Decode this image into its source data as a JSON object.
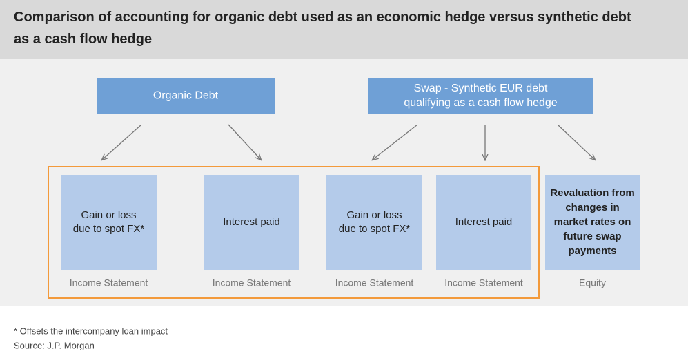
{
  "header": {
    "title": [
      "Comparison of accounting for organic debt used as an economic hedge versus synthetic debt",
      "as a cash flow hedge"
    ]
  },
  "nodes": {
    "top": [
      {
        "lines": [
          "Organic Debt"
        ]
      },
      {
        "lines": [
          "Swap - Synthetic EUR debt",
          "qualifying as a cash flow hedge"
        ]
      }
    ],
    "bottom": [
      {
        "lines": [
          "Gain or loss",
          "due to spot FX*"
        ],
        "caption": "Income Statement"
      },
      {
        "lines": [
          "Interest paid"
        ],
        "caption": "Income Statement"
      },
      {
        "lines": [
          "Gain or loss",
          "due to spot FX*"
        ],
        "caption": "Income Statement"
      },
      {
        "lines": [
          "Interest paid"
        ],
        "caption": "Income Statement"
      },
      {
        "lines": [
          "Revaluation from",
          "changes in",
          "market rates on",
          "future swap",
          "payments"
        ],
        "caption": "Equity"
      }
    ]
  },
  "footnotes": [
    "* Offsets the intercompany loan impact",
    "Source: J.P. Morgan"
  ]
}
